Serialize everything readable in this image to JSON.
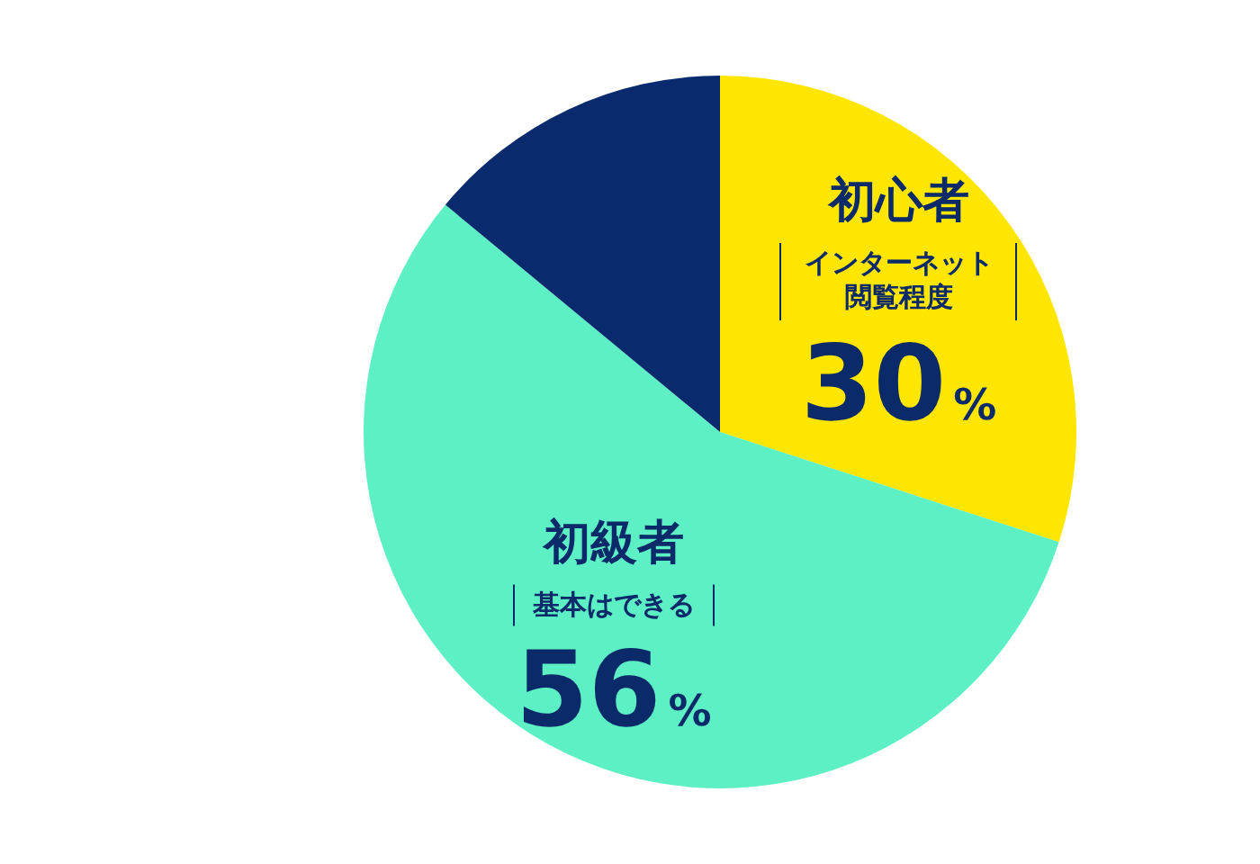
{
  "chart_data": {
    "type": "pie",
    "categories": [
      "初心者",
      "初級者",
      null
    ],
    "values": [
      30,
      56,
      14
    ],
    "colors": [
      "#ffe600",
      "#5cf0c4",
      "#0a2a6e"
    ],
    "value_labels": [
      "30%",
      "56%",
      null
    ],
    "annotations": [
      "インターネット閲覧程度",
      "基本はできる"
    ]
  }
}
